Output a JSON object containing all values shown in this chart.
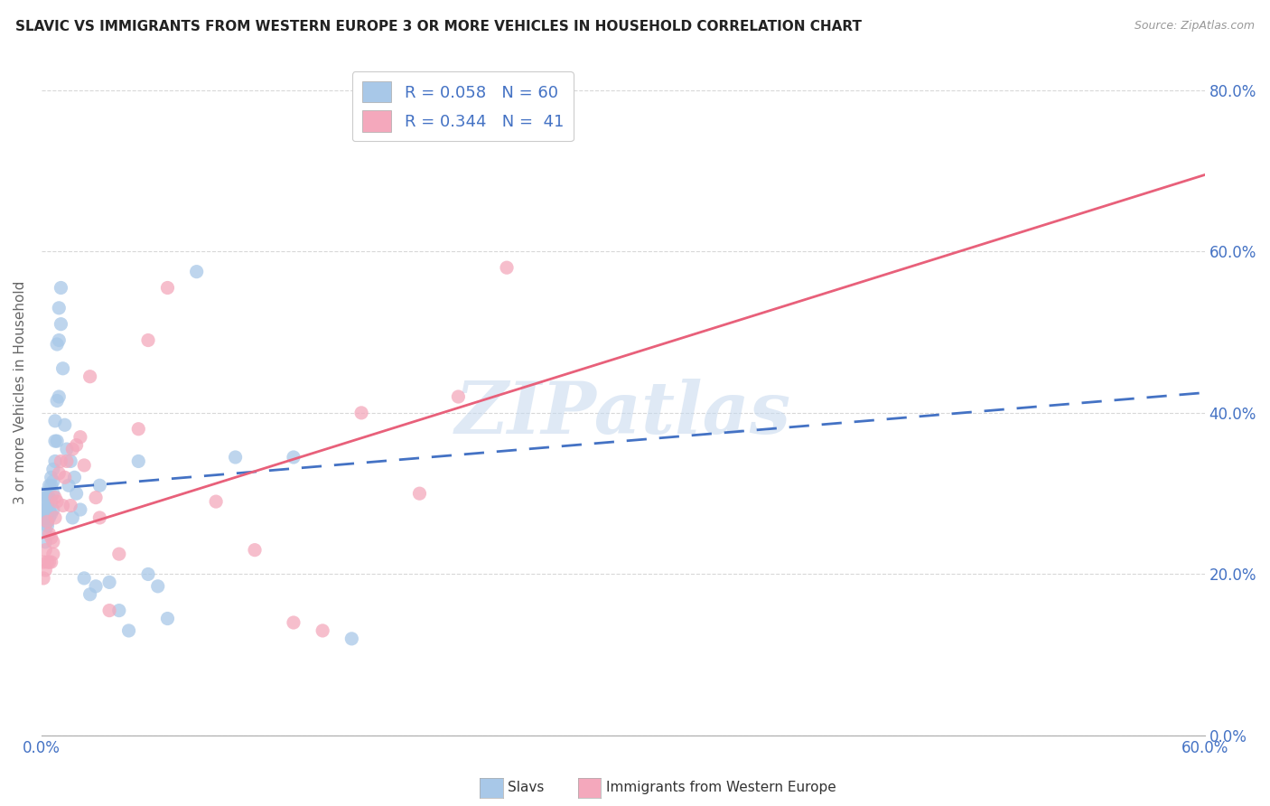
{
  "title": "SLAVIC VS IMMIGRANTS FROM WESTERN EUROPE 3 OR MORE VEHICLES IN HOUSEHOLD CORRELATION CHART",
  "source": "Source: ZipAtlas.com",
  "ylabel": "3 or more Vehicles in Household",
  "slavs_color": "#a8c8e8",
  "immigrants_color": "#f4a8bc",
  "line_slavs_color": "#4472c4",
  "line_immigrants_color": "#e8607a",
  "watermark": "ZIPatlas",
  "slavs_x": [
    0.001,
    0.001,
    0.001,
    0.002,
    0.002,
    0.002,
    0.002,
    0.002,
    0.003,
    0.003,
    0.003,
    0.003,
    0.003,
    0.004,
    0.004,
    0.004,
    0.004,
    0.005,
    0.005,
    0.005,
    0.005,
    0.006,
    0.006,
    0.006,
    0.006,
    0.007,
    0.007,
    0.007,
    0.008,
    0.008,
    0.008,
    0.009,
    0.009,
    0.009,
    0.01,
    0.01,
    0.011,
    0.012,
    0.013,
    0.014,
    0.015,
    0.016,
    0.017,
    0.018,
    0.02,
    0.022,
    0.025,
    0.028,
    0.03,
    0.035,
    0.04,
    0.045,
    0.05,
    0.055,
    0.06,
    0.065,
    0.08,
    0.1,
    0.13,
    0.16
  ],
  "slavs_y": [
    0.28,
    0.3,
    0.27,
    0.28,
    0.295,
    0.27,
    0.255,
    0.24,
    0.295,
    0.275,
    0.265,
    0.285,
    0.26,
    0.295,
    0.31,
    0.27,
    0.28,
    0.31,
    0.32,
    0.275,
    0.29,
    0.33,
    0.3,
    0.28,
    0.315,
    0.365,
    0.39,
    0.34,
    0.415,
    0.485,
    0.365,
    0.49,
    0.42,
    0.53,
    0.555,
    0.51,
    0.455,
    0.385,
    0.355,
    0.31,
    0.34,
    0.27,
    0.32,
    0.3,
    0.28,
    0.195,
    0.175,
    0.185,
    0.31,
    0.19,
    0.155,
    0.13,
    0.34,
    0.2,
    0.185,
    0.145,
    0.575,
    0.345,
    0.345,
    0.12
  ],
  "immigrants_x": [
    0.001,
    0.001,
    0.002,
    0.002,
    0.003,
    0.003,
    0.004,
    0.004,
    0.005,
    0.005,
    0.006,
    0.006,
    0.007,
    0.007,
    0.008,
    0.009,
    0.01,
    0.011,
    0.012,
    0.013,
    0.015,
    0.016,
    0.018,
    0.02,
    0.022,
    0.025,
    0.028,
    0.03,
    0.035,
    0.04,
    0.05,
    0.055,
    0.065,
    0.09,
    0.11,
    0.13,
    0.145,
    0.165,
    0.195,
    0.215,
    0.24
  ],
  "immigrants_y": [
    0.215,
    0.195,
    0.23,
    0.205,
    0.265,
    0.215,
    0.25,
    0.215,
    0.245,
    0.215,
    0.24,
    0.225,
    0.27,
    0.295,
    0.29,
    0.325,
    0.34,
    0.285,
    0.32,
    0.34,
    0.285,
    0.355,
    0.36,
    0.37,
    0.335,
    0.445,
    0.295,
    0.27,
    0.155,
    0.225,
    0.38,
    0.49,
    0.555,
    0.29,
    0.23,
    0.14,
    0.13,
    0.4,
    0.3,
    0.42,
    0.58
  ],
  "xmin": 0.0,
  "xmax": 0.6,
  "ymin": 0.0,
  "ymax": 0.85,
  "background_color": "#ffffff",
  "grid_color": "#d8d8d8",
  "slavs_line_intercept": 0.305,
  "slavs_line_slope": 0.2,
  "immigrants_line_intercept": 0.245,
  "immigrants_line_slope": 0.75
}
